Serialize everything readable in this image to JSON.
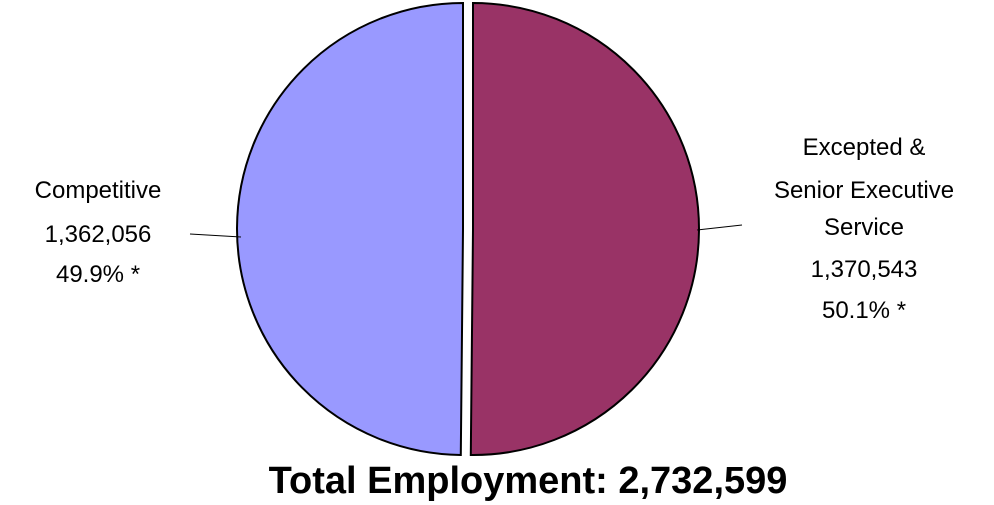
{
  "chart_data": {
    "type": "pie",
    "slices": [
      {
        "label_lines": [
          "Competitive",
          "1,362,056",
          "49.9% *"
        ],
        "category": "Competitive",
        "value": 1362056,
        "percent": 49.9,
        "color": "#9999ff"
      },
      {
        "label_lines": [
          "Excepted &",
          "Senior Executive",
          "Service",
          "1,370,543",
          "50.1% *"
        ],
        "category": "Excepted & Senior Executive Service",
        "value": 1370543,
        "percent": 50.1,
        "color": "#993366"
      }
    ],
    "total_label": "Total Employment: 2,732,599",
    "total": 2732599
  }
}
